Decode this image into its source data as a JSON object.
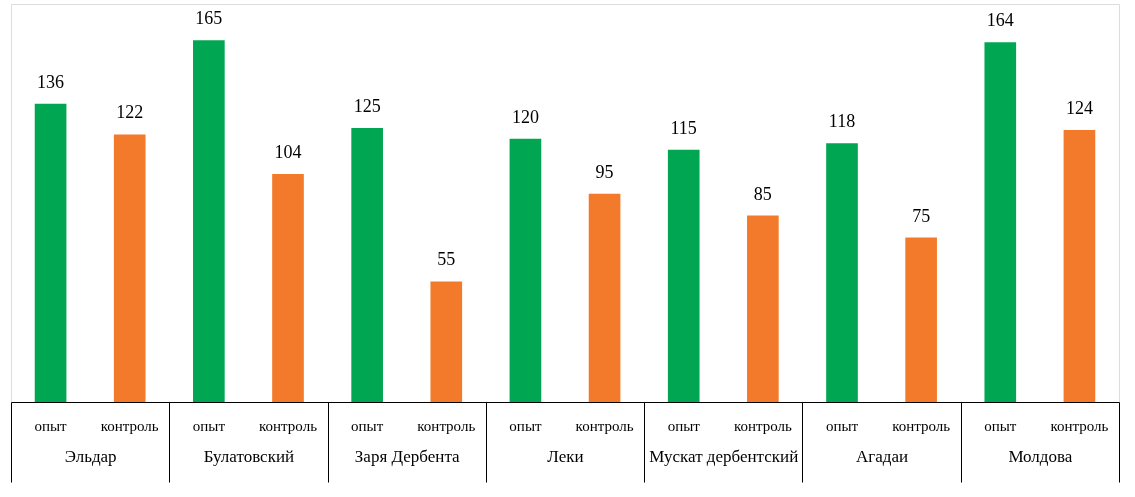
{
  "chart_data": {
    "type": "bar",
    "categories": [
      "Эльдар",
      "Булатовский",
      "Заря Дербента",
      "Леки",
      "Мускат дербентский",
      "Агадаи",
      "Молдова"
    ],
    "series": [
      {
        "name": "опыт",
        "color": "#00a651",
        "values": [
          136,
          165,
          125,
          120,
          115,
          118,
          164
        ]
      },
      {
        "name": "контроль",
        "color": "#f47a2b",
        "values": [
          122,
          104,
          55,
          95,
          85,
          75,
          124
        ]
      }
    ],
    "data_labels": true,
    "grid": false,
    "legend": false
  }
}
